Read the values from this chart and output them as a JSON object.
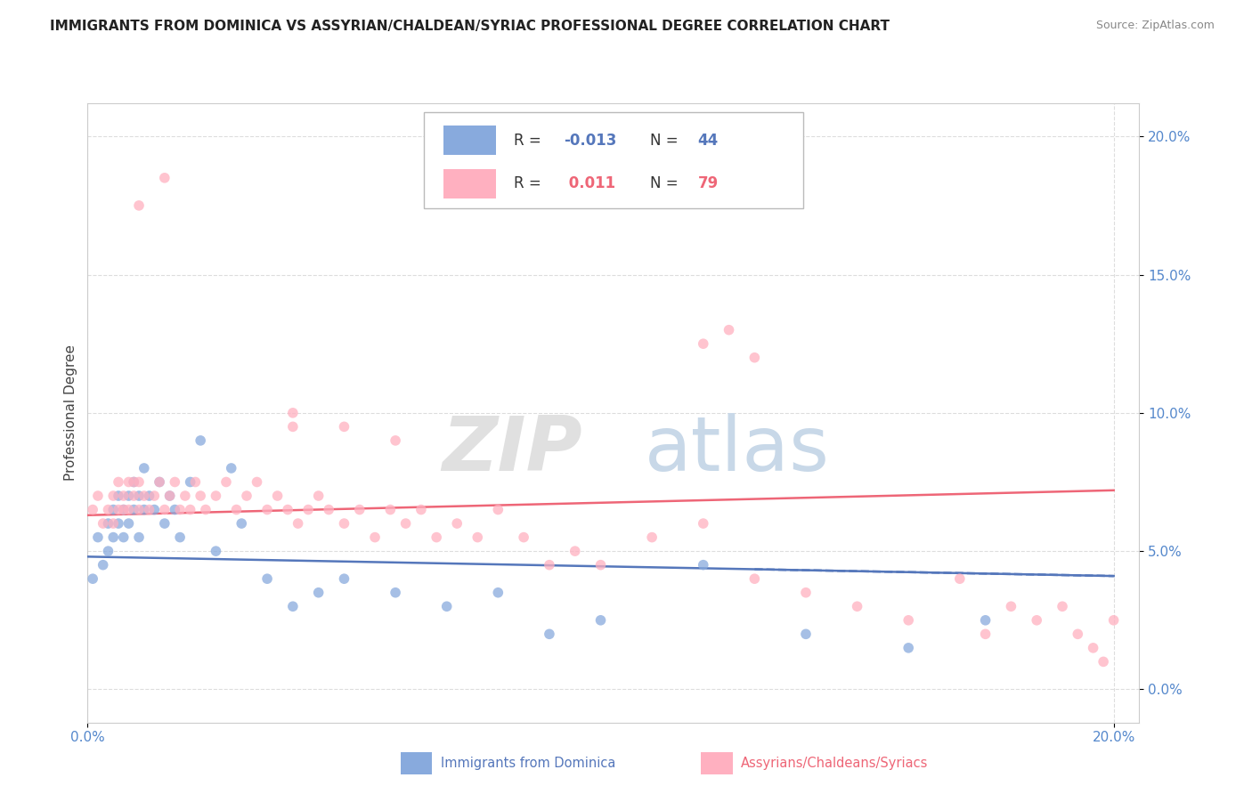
{
  "title": "IMMIGRANTS FROM DOMINICA VS ASSYRIAN/CHALDEAN/SYRIAC PROFESSIONAL DEGREE CORRELATION CHART",
  "source": "Source: ZipAtlas.com",
  "ylabel": "Professional Degree",
  "xmin": 0.0,
  "xmax": 0.205,
  "ymin": -0.012,
  "ymax": 0.212,
  "color_blue": "#88AADD",
  "color_pink": "#FFB0C0",
  "color_blue_line": "#5577BB",
  "color_pink_line": "#EE6677",
  "color_axis": "#5588CC",
  "grid_color": "#DDDDDD",
  "r1": "-0.013",
  "n1": "44",
  "r2": "0.011",
  "n2": "79",
  "ytick_vals": [
    0.0,
    0.05,
    0.1,
    0.15,
    0.2
  ],
  "ytick_labels": [
    "0.0%",
    "5.0%",
    "10.0%",
    "15.0%",
    "20.0%"
  ],
  "xtick_vals": [
    0.0,
    0.2
  ],
  "xtick_labels": [
    "0.0%",
    "20.0%"
  ],
  "blue_trend_start": 0.048,
  "blue_trend_end": 0.041,
  "pink_trend_start": 0.063,
  "pink_trend_end": 0.072,
  "legend_label1": "Immigrants from Dominica",
  "legend_label2": "Assyrians/Chaldeans/Syriacs",
  "blue_x": [
    0.001,
    0.002,
    0.003,
    0.004,
    0.004,
    0.005,
    0.005,
    0.006,
    0.006,
    0.007,
    0.007,
    0.008,
    0.008,
    0.009,
    0.009,
    0.01,
    0.01,
    0.011,
    0.011,
    0.012,
    0.013,
    0.014,
    0.015,
    0.016,
    0.017,
    0.018,
    0.02,
    0.022,
    0.025,
    0.028,
    0.03,
    0.035,
    0.04,
    0.045,
    0.05,
    0.06,
    0.07,
    0.08,
    0.09,
    0.1,
    0.12,
    0.14,
    0.16,
    0.175
  ],
  "blue_y": [
    0.04,
    0.055,
    0.045,
    0.05,
    0.06,
    0.065,
    0.055,
    0.07,
    0.06,
    0.065,
    0.055,
    0.07,
    0.06,
    0.065,
    0.075,
    0.07,
    0.055,
    0.08,
    0.065,
    0.07,
    0.065,
    0.075,
    0.06,
    0.07,
    0.065,
    0.055,
    0.075,
    0.09,
    0.05,
    0.08,
    0.06,
    0.04,
    0.03,
    0.035,
    0.04,
    0.035,
    0.03,
    0.035,
    0.02,
    0.025,
    0.045,
    0.02,
    0.015,
    0.025
  ],
  "pink_x": [
    0.001,
    0.002,
    0.003,
    0.004,
    0.005,
    0.005,
    0.006,
    0.006,
    0.007,
    0.007,
    0.008,
    0.008,
    0.009,
    0.009,
    0.01,
    0.01,
    0.011,
    0.012,
    0.013,
    0.014,
    0.015,
    0.016,
    0.017,
    0.018,
    0.019,
    0.02,
    0.021,
    0.022,
    0.023,
    0.025,
    0.027,
    0.029,
    0.031,
    0.033,
    0.035,
    0.037,
    0.039,
    0.041,
    0.043,
    0.045,
    0.047,
    0.05,
    0.053,
    0.056,
    0.059,
    0.062,
    0.065,
    0.068,
    0.072,
    0.076,
    0.08,
    0.085,
    0.09,
    0.095,
    0.1,
    0.11,
    0.12,
    0.13,
    0.14,
    0.15,
    0.16,
    0.17,
    0.175,
    0.18,
    0.185,
    0.19,
    0.193,
    0.196,
    0.198,
    0.2,
    0.12,
    0.125,
    0.13,
    0.04,
    0.04,
    0.05,
    0.06,
    0.01,
    0.015
  ],
  "pink_y": [
    0.065,
    0.07,
    0.06,
    0.065,
    0.07,
    0.06,
    0.065,
    0.075,
    0.07,
    0.065,
    0.075,
    0.065,
    0.07,
    0.075,
    0.065,
    0.075,
    0.07,
    0.065,
    0.07,
    0.075,
    0.065,
    0.07,
    0.075,
    0.065,
    0.07,
    0.065,
    0.075,
    0.07,
    0.065,
    0.07,
    0.075,
    0.065,
    0.07,
    0.075,
    0.065,
    0.07,
    0.065,
    0.06,
    0.065,
    0.07,
    0.065,
    0.06,
    0.065,
    0.055,
    0.065,
    0.06,
    0.065,
    0.055,
    0.06,
    0.055,
    0.065,
    0.055,
    0.045,
    0.05,
    0.045,
    0.055,
    0.06,
    0.04,
    0.035,
    0.03,
    0.025,
    0.04,
    0.02,
    0.03,
    0.025,
    0.03,
    0.02,
    0.015,
    0.01,
    0.025,
    0.125,
    0.13,
    0.12,
    0.1,
    0.095,
    0.095,
    0.09,
    0.175,
    0.185
  ]
}
